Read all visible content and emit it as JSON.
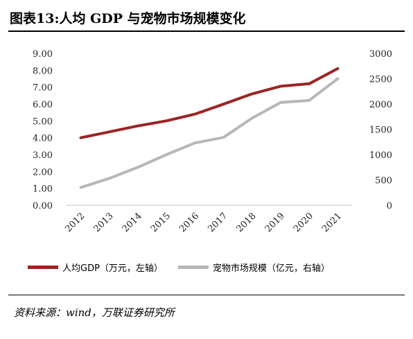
{
  "title": "图表13:人均 GDP 与宠物市场规模变化",
  "source": "资料来源：wind，万联证券研究所",
  "legend": {
    "series0": "人均GDP（万元，左轴）",
    "series1": "宠物市场规模（亿元，右轴）"
  },
  "chart_data": {
    "type": "line",
    "x": [
      "2012",
      "2013",
      "2014",
      "2015",
      "2016",
      "2017",
      "2018",
      "2019",
      "2020",
      "2021"
    ],
    "y_left_ticks": [
      "0.00",
      "1.00",
      "2.00",
      "3.00",
      "4.00",
      "5.00",
      "6.00",
      "7.00",
      "8.00",
      "9.00"
    ],
    "y_right_ticks": [
      "0",
      "500",
      "1000",
      "1500",
      "2000",
      "2500",
      "3000"
    ],
    "ylim_left": [
      0,
      9
    ],
    "ylim_right": [
      0,
      3000
    ],
    "series": [
      {
        "name": "人均GDP（万元，左轴）",
        "axis": "left",
        "color": "#9b2422",
        "values": [
          4.0,
          4.35,
          4.7,
          5.0,
          5.4,
          5.99,
          6.6,
          7.05,
          7.2,
          8.1
        ]
      },
      {
        "name": "宠物市场规模（亿元，右轴）",
        "axis": "right",
        "color": "#b7b7b7",
        "values": [
          350,
          530,
          750,
          1000,
          1230,
          1340,
          1720,
          2030,
          2070,
          2500
        ]
      }
    ]
  }
}
